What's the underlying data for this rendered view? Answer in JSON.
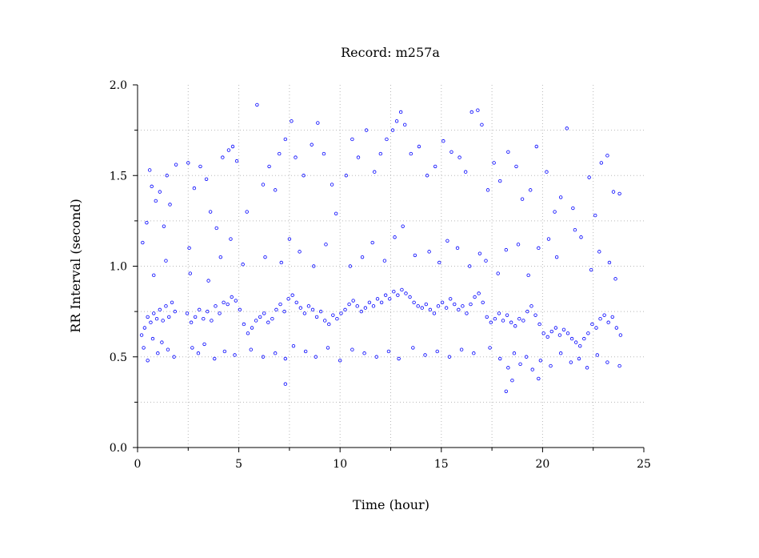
{
  "chart_data": {
    "type": "scatter",
    "title": "Record:  m257a",
    "xlabel": "Time (hour)",
    "ylabel": "RR Interval (second)",
    "xlim": [
      0,
      25
    ],
    "ylim": [
      0,
      2
    ],
    "x_ticks": [
      0,
      5,
      10,
      15,
      20,
      25
    ],
    "x_tick_labels": [
      "0",
      "5",
      "10",
      "15",
      "20",
      "25"
    ],
    "y_ticks": [
      0,
      0.5,
      1,
      1.5,
      2
    ],
    "y_tick_labels": [
      "0.0",
      "0.5",
      "1.0",
      "1.5",
      "2.0"
    ],
    "x_minor_ticks": [
      2.5,
      7.5,
      12.5,
      17.5,
      22.5
    ],
    "y_minor_ticks": [
      0.25,
      0.75,
      1.25,
      1.75
    ],
    "grid": true,
    "series": [
      {
        "color": "#0000ff",
        "marker": "open-circle",
        "points": [
          [
            0.2,
            0.62
          ],
          [
            0.35,
            0.66
          ],
          [
            0.5,
            0.72
          ],
          [
            0.65,
            0.69
          ],
          [
            0.8,
            0.74
          ],
          [
            0.95,
            0.71
          ],
          [
            1.1,
            0.76
          ],
          [
            1.25,
            0.7
          ],
          [
            1.4,
            0.78
          ],
          [
            1.55,
            0.72
          ],
          [
            1.7,
            0.8
          ],
          [
            1.85,
            0.75
          ],
          [
            2.45,
            0.74
          ],
          [
            2.65,
            0.69
          ],
          [
            2.85,
            0.72
          ],
          [
            3.05,
            0.76
          ],
          [
            3.25,
            0.71
          ],
          [
            3.45,
            0.75
          ],
          [
            3.65,
            0.7
          ],
          [
            3.85,
            0.78
          ],
          [
            4.05,
            0.74
          ],
          [
            4.25,
            0.8
          ],
          [
            4.45,
            0.79
          ],
          [
            4.65,
            0.83
          ],
          [
            4.85,
            0.81
          ],
          [
            5.05,
            0.76
          ],
          [
            5.25,
            0.68
          ],
          [
            5.45,
            0.63
          ],
          [
            5.65,
            0.66
          ],
          [
            5.85,
            0.7
          ],
          [
            6.05,
            0.72
          ],
          [
            6.25,
            0.74
          ],
          [
            6.45,
            0.69
          ],
          [
            6.65,
            0.71
          ],
          [
            6.85,
            0.76
          ],
          [
            7.05,
            0.79
          ],
          [
            7.25,
            0.75
          ],
          [
            7.45,
            0.82
          ],
          [
            7.65,
            0.84
          ],
          [
            7.85,
            0.8
          ],
          [
            8.05,
            0.77
          ],
          [
            8.25,
            0.74
          ],
          [
            8.45,
            0.78
          ],
          [
            8.65,
            0.76
          ],
          [
            8.85,
            0.72
          ],
          [
            9.05,
            0.75
          ],
          [
            9.25,
            0.7
          ],
          [
            9.45,
            0.68
          ],
          [
            9.65,
            0.73
          ],
          [
            9.85,
            0.71
          ],
          [
            10.05,
            0.74
          ],
          [
            10.25,
            0.76
          ],
          [
            10.45,
            0.79
          ],
          [
            10.65,
            0.81
          ],
          [
            10.85,
            0.78
          ],
          [
            11.05,
            0.75
          ],
          [
            11.25,
            0.77
          ],
          [
            11.45,
            0.8
          ],
          [
            11.65,
            0.78
          ],
          [
            11.85,
            0.82
          ],
          [
            12.05,
            0.8
          ],
          [
            12.25,
            0.84
          ],
          [
            12.45,
            0.82
          ],
          [
            12.65,
            0.86
          ],
          [
            12.85,
            0.84
          ],
          [
            13.05,
            0.87
          ],
          [
            13.25,
            0.85
          ],
          [
            13.45,
            0.83
          ],
          [
            13.65,
            0.8
          ],
          [
            13.85,
            0.78
          ],
          [
            14.05,
            0.77
          ],
          [
            14.25,
            0.79
          ],
          [
            14.45,
            0.76
          ],
          [
            14.65,
            0.74
          ],
          [
            14.85,
            0.78
          ],
          [
            15.05,
            0.8
          ],
          [
            15.25,
            0.77
          ],
          [
            15.45,
            0.82
          ],
          [
            15.65,
            0.79
          ],
          [
            15.85,
            0.76
          ],
          [
            16.05,
            0.78
          ],
          [
            16.25,
            0.74
          ],
          [
            16.45,
            0.79
          ],
          [
            16.65,
            0.83
          ],
          [
            16.85,
            0.85
          ],
          [
            17.05,
            0.8
          ],
          [
            17.25,
            0.72
          ],
          [
            17.45,
            0.69
          ],
          [
            17.65,
            0.71
          ],
          [
            17.85,
            0.74
          ],
          [
            18.05,
            0.7
          ],
          [
            18.25,
            0.73
          ],
          [
            18.45,
            0.69
          ],
          [
            18.65,
            0.67
          ],
          [
            18.85,
            0.71
          ],
          [
            19.05,
            0.7
          ],
          [
            19.25,
            0.75
          ],
          [
            19.45,
            0.78
          ],
          [
            19.65,
            0.73
          ],
          [
            19.85,
            0.68
          ],
          [
            20.05,
            0.63
          ],
          [
            20.25,
            0.61
          ],
          [
            20.45,
            0.64
          ],
          [
            20.65,
            0.66
          ],
          [
            20.85,
            0.62
          ],
          [
            21.05,
            0.65
          ],
          [
            21.25,
            0.63
          ],
          [
            21.45,
            0.6
          ],
          [
            21.65,
            0.58
          ],
          [
            21.85,
            0.56
          ],
          [
            22.05,
            0.6
          ],
          [
            22.25,
            0.63
          ],
          [
            22.45,
            0.68
          ],
          [
            22.65,
            0.66
          ],
          [
            22.85,
            0.71
          ],
          [
            23.05,
            0.73
          ],
          [
            23.25,
            0.69
          ],
          [
            23.45,
            0.72
          ],
          [
            23.65,
            0.66
          ],
          [
            23.85,
            0.62
          ],
          [
            0.3,
            0.55
          ],
          [
            0.5,
            0.48
          ],
          [
            0.75,
            0.6
          ],
          [
            1.0,
            0.52
          ],
          [
            1.2,
            0.58
          ],
          [
            1.5,
            0.54
          ],
          [
            1.8,
            0.5
          ],
          [
            2.7,
            0.55
          ],
          [
            3.0,
            0.52
          ],
          [
            3.3,
            0.57
          ],
          [
            3.8,
            0.49
          ],
          [
            4.3,
            0.53
          ],
          [
            4.8,
            0.51
          ],
          [
            5.6,
            0.54
          ],
          [
            6.2,
            0.5
          ],
          [
            6.8,
            0.52
          ],
          [
            7.3,
            0.49
          ],
          [
            7.7,
            0.56
          ],
          [
            8.3,
            0.53
          ],
          [
            8.8,
            0.5
          ],
          [
            9.4,
            0.55
          ],
          [
            10.0,
            0.48
          ],
          [
            10.6,
            0.54
          ],
          [
            11.2,
            0.52
          ],
          [
            11.8,
            0.5
          ],
          [
            12.4,
            0.53
          ],
          [
            12.9,
            0.49
          ],
          [
            13.6,
            0.55
          ],
          [
            14.2,
            0.51
          ],
          [
            14.8,
            0.53
          ],
          [
            15.4,
            0.5
          ],
          [
            16.0,
            0.54
          ],
          [
            16.6,
            0.52
          ],
          [
            17.4,
            0.55
          ],
          [
            17.9,
            0.49
          ],
          [
            18.3,
            0.44
          ],
          [
            18.6,
            0.52
          ],
          [
            18.9,
            0.46
          ],
          [
            19.2,
            0.5
          ],
          [
            19.5,
            0.43
          ],
          [
            19.9,
            0.48
          ],
          [
            20.4,
            0.45
          ],
          [
            20.9,
            0.52
          ],
          [
            21.4,
            0.47
          ],
          [
            21.8,
            0.49
          ],
          [
            22.2,
            0.44
          ],
          [
            22.7,
            0.51
          ],
          [
            23.2,
            0.47
          ],
          [
            23.8,
            0.45
          ],
          [
            0.25,
            1.13
          ],
          [
            0.45,
            1.24
          ],
          [
            0.6,
            1.53
          ],
          [
            0.7,
            1.44
          ],
          [
            0.9,
            1.36
          ],
          [
            1.1,
            1.41
          ],
          [
            1.3,
            1.22
          ],
          [
            1.45,
            1.5
          ],
          [
            1.6,
            1.34
          ],
          [
            1.9,
            1.56
          ],
          [
            2.5,
            1.57
          ],
          [
            2.55,
            1.1
          ],
          [
            2.8,
            1.43
          ],
          [
            3.1,
            1.55
          ],
          [
            3.4,
            1.48
          ],
          [
            3.6,
            1.3
          ],
          [
            3.9,
            1.21
          ],
          [
            4.2,
            1.6
          ],
          [
            4.5,
            1.64
          ],
          [
            4.7,
            1.66
          ],
          [
            4.9,
            1.58
          ],
          [
            5.4,
            1.3
          ],
          [
            5.9,
            1.89
          ],
          [
            6.2,
            1.45
          ],
          [
            6.5,
            1.55
          ],
          [
            6.8,
            1.42
          ],
          [
            7.0,
            1.62
          ],
          [
            7.3,
            1.7
          ],
          [
            7.6,
            1.8
          ],
          [
            7.8,
            1.6
          ],
          [
            8.2,
            1.5
          ],
          [
            8.6,
            1.67
          ],
          [
            8.9,
            1.79
          ],
          [
            9.2,
            1.62
          ],
          [
            9.6,
            1.45
          ],
          [
            9.8,
            1.29
          ],
          [
            10.3,
            1.5
          ],
          [
            10.6,
            1.7
          ],
          [
            10.9,
            1.6
          ],
          [
            11.3,
            1.75
          ],
          [
            11.7,
            1.52
          ],
          [
            12.0,
            1.62
          ],
          [
            12.3,
            1.7
          ],
          [
            12.6,
            1.75
          ],
          [
            12.8,
            1.8
          ],
          [
            13.0,
            1.85
          ],
          [
            13.2,
            1.78
          ],
          [
            13.5,
            1.62
          ],
          [
            13.9,
            1.66
          ],
          [
            14.3,
            1.5
          ],
          [
            14.7,
            1.55
          ],
          [
            15.1,
            1.69
          ],
          [
            15.5,
            1.63
          ],
          [
            15.9,
            1.6
          ],
          [
            16.2,
            1.52
          ],
          [
            16.5,
            1.85
          ],
          [
            16.8,
            1.86
          ],
          [
            17.0,
            1.78
          ],
          [
            17.3,
            1.42
          ],
          [
            17.6,
            1.57
          ],
          [
            17.9,
            1.47
          ],
          [
            18.3,
            1.63
          ],
          [
            18.7,
            1.55
          ],
          [
            19.0,
            1.37
          ],
          [
            19.4,
            1.42
          ],
          [
            19.7,
            1.66
          ],
          [
            20.2,
            1.52
          ],
          [
            20.6,
            1.3
          ],
          [
            20.9,
            1.38
          ],
          [
            21.2,
            1.76
          ],
          [
            21.5,
            1.32
          ],
          [
            21.9,
            1.16
          ],
          [
            22.3,
            1.49
          ],
          [
            22.6,
            1.28
          ],
          [
            22.9,
            1.57
          ],
          [
            23.2,
            1.61
          ],
          [
            23.5,
            1.41
          ],
          [
            23.8,
            1.4
          ],
          [
            0.8,
            0.95
          ],
          [
            1.4,
            1.03
          ],
          [
            2.6,
            0.96
          ],
          [
            3.5,
            0.92
          ],
          [
            4.1,
            1.05
          ],
          [
            4.6,
            1.15
          ],
          [
            5.2,
            1.01
          ],
          [
            6.3,
            1.05
          ],
          [
            7.1,
            1.02
          ],
          [
            7.5,
            1.15
          ],
          [
            8.0,
            1.08
          ],
          [
            8.7,
            1.0
          ],
          [
            9.3,
            1.12
          ],
          [
            10.5,
            1.0
          ],
          [
            11.1,
            1.05
          ],
          [
            11.6,
            1.13
          ],
          [
            12.2,
            1.03
          ],
          [
            12.7,
            1.16
          ],
          [
            13.1,
            1.22
          ],
          [
            13.7,
            1.06
          ],
          [
            14.4,
            1.08
          ],
          [
            14.9,
            1.02
          ],
          [
            15.3,
            1.14
          ],
          [
            15.8,
            1.1
          ],
          [
            16.4,
            1.0
          ],
          [
            16.9,
            1.07
          ],
          [
            17.2,
            1.03
          ],
          [
            17.8,
            0.96
          ],
          [
            18.2,
            1.09
          ],
          [
            18.8,
            1.12
          ],
          [
            19.3,
            0.95
          ],
          [
            19.8,
            1.1
          ],
          [
            20.3,
            1.15
          ],
          [
            20.7,
            1.05
          ],
          [
            21.6,
            1.2
          ],
          [
            22.4,
            0.98
          ],
          [
            22.8,
            1.08
          ],
          [
            23.3,
            1.02
          ],
          [
            23.6,
            0.93
          ],
          [
            7.3,
            0.35
          ],
          [
            18.2,
            0.31
          ],
          [
            18.5,
            0.37
          ],
          [
            19.8,
            0.38
          ]
        ]
      }
    ]
  }
}
